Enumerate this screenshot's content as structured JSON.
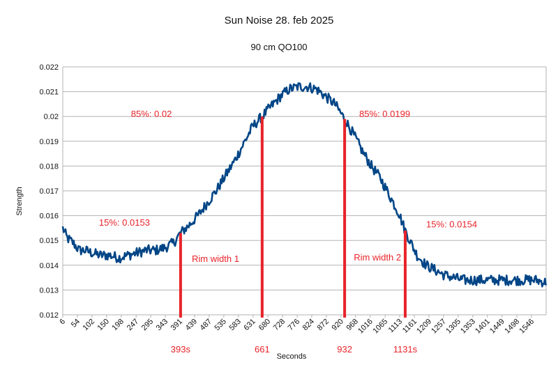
{
  "chart_data": {
    "type": "line",
    "title": "Sun Noise 28. feb 2025",
    "subtitle": "90 cm QO100",
    "xlabel": "Seconds",
    "ylabel": "Strength",
    "xlim": [
      6,
      1594
    ],
    "ylim": [
      0.012,
      0.022
    ],
    "y_ticks": [
      "0.012",
      "0.013",
      "0.014",
      "0.015",
      "0.016",
      "0.017",
      "0.018",
      "0.019",
      "0.02",
      "0.021",
      "0.022"
    ],
    "x_ticks": [
      6,
      54,
      102,
      150,
      198,
      247,
      295,
      343,
      391,
      439,
      487,
      535,
      583,
      631,
      680,
      728,
      776,
      824,
      872,
      920,
      968,
      1016,
      1065,
      1113,
      1161,
      1209,
      1257,
      1305,
      1353,
      1401,
      1449,
      1498,
      1546
    ],
    "grid": true,
    "legend": "none",
    "series": [
      {
        "color": "#004586",
        "points": [
          [
            6,
            0.0155
          ],
          [
            20,
            0.0151
          ],
          [
            40,
            0.0149
          ],
          [
            60,
            0.0146
          ],
          [
            80,
            0.0146
          ],
          [
            100,
            0.0145
          ],
          [
            130,
            0.0144
          ],
          [
            160,
            0.0144
          ],
          [
            190,
            0.0143
          ],
          [
            220,
            0.0144
          ],
          [
            250,
            0.0145
          ],
          [
            280,
            0.0146
          ],
          [
            310,
            0.0146
          ],
          [
            340,
            0.0147
          ],
          [
            370,
            0.0149
          ],
          [
            393,
            0.0153
          ],
          [
            420,
            0.0156
          ],
          [
            450,
            0.016
          ],
          [
            480,
            0.0165
          ],
          [
            510,
            0.017
          ],
          [
            540,
            0.0176
          ],
          [
            570,
            0.0182
          ],
          [
            600,
            0.0189
          ],
          [
            630,
            0.0196
          ],
          [
            661,
            0.02
          ],
          [
            690,
            0.0204
          ],
          [
            720,
            0.0208
          ],
          [
            750,
            0.0211
          ],
          [
            780,
            0.0212
          ],
          [
            810,
            0.0212
          ],
          [
            840,
            0.0211
          ],
          [
            870,
            0.0208
          ],
          [
            900,
            0.0205
          ],
          [
            932,
            0.0199
          ],
          [
            960,
            0.0193
          ],
          [
            990,
            0.0186
          ],
          [
            1020,
            0.018
          ],
          [
            1050,
            0.0175
          ],
          [
            1080,
            0.0168
          ],
          [
            1110,
            0.0161
          ],
          [
            1131,
            0.0154
          ],
          [
            1150,
            0.0149
          ],
          [
            1170,
            0.0144
          ],
          [
            1200,
            0.014
          ],
          [
            1230,
            0.0138
          ],
          [
            1260,
            0.0136
          ],
          [
            1290,
            0.0135
          ],
          [
            1320,
            0.0134
          ],
          [
            1350,
            0.0134
          ],
          [
            1380,
            0.0134
          ],
          [
            1410,
            0.0134
          ],
          [
            1440,
            0.0134
          ],
          [
            1470,
            0.0134
          ],
          [
            1500,
            0.0134
          ],
          [
            1530,
            0.0134
          ],
          [
            1560,
            0.0134
          ],
          [
            1594,
            0.0133
          ]
        ]
      }
    ],
    "markers": [
      {
        "x": 393,
        "y": 0.0153,
        "bottom_label": "393s"
      },
      {
        "x": 661,
        "y": 0.02,
        "bottom_label": "661"
      },
      {
        "x": 932,
        "y": 0.0199,
        "bottom_label": "932"
      },
      {
        "x": 1131,
        "y": 0.0154,
        "bottom_label": "1131s"
      }
    ],
    "annotations": [
      {
        "text": "85%: 0.02",
        "x": 230,
        "y": 0.01998
      },
      {
        "text": "85%: 0.0199",
        "x": 980,
        "y": 0.01998
      },
      {
        "text": "15%: 0.0153",
        "x": 125,
        "y": 0.0156
      },
      {
        "text": "15%: 0.0154",
        "x": 1200,
        "y": 0.01552
      },
      {
        "text": "Rim width 1",
        "x": 430,
        "y": 0.01414
      },
      {
        "text": "Rim width 2",
        "x": 962,
        "y": 0.01419
      }
    ],
    "annotation_color": "#e8232a",
    "marker_color": "#e8232a"
  }
}
